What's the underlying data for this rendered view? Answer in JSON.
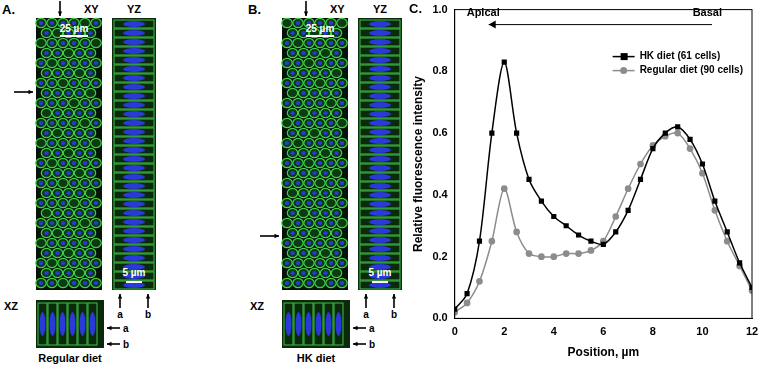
{
  "panels": [
    {
      "panel_label": "A.",
      "caption": "Regular diet",
      "xy_title": "XY",
      "yz_title": "YZ",
      "xz_title": "XZ",
      "xy_scale_bar": "25 µm",
      "yz_scale_bar": "5 µm",
      "yz_marks": [
        "a",
        "b"
      ],
      "xz_marks": [
        "a",
        "b"
      ]
    },
    {
      "panel_label": "B.",
      "caption": "HK diet",
      "xy_title": "XY",
      "yz_title": "YZ",
      "xz_title": "XZ",
      "xy_scale_bar": "25 µm",
      "yz_scale_bar": "5 µm",
      "yz_marks": [
        "a",
        "b"
      ],
      "xz_marks": [
        "a",
        "b"
      ]
    }
  ],
  "chart_data": {
    "panel_label": "C.",
    "type": "line",
    "annotations": [
      "Apical",
      "Basal"
    ],
    "x_label": "Position, µm",
    "y_label": "Relative fluorescence intensity",
    "xlim": [
      0,
      12
    ],
    "xticks": [
      0,
      2,
      4,
      6,
      8,
      10,
      12
    ],
    "ylim": [
      0,
      1
    ],
    "yticks": [
      {
        "value": 0,
        "label": "0.0"
      },
      {
        "value": 0.2,
        "label": "0.2"
      },
      {
        "value": 0.4,
        "label": "0.4"
      },
      {
        "value": 0.6,
        "label": "0.6"
      },
      {
        "value": 0.8,
        "label": "0.8"
      },
      {
        "value": 1,
        "label": "1.0"
      }
    ],
    "grid": false,
    "legend": "upper right",
    "x": [
      0,
      0.5,
      1,
      1.5,
      2,
      2.5,
      3,
      3.5,
      4,
      4.5,
      5,
      5.5,
      6,
      6.5,
      7,
      7.5,
      8,
      8.5,
      9,
      9.5,
      10,
      10.5,
      11,
      11.5,
      12
    ],
    "series": [
      {
        "name": "HK diet (61 cells)",
        "color": "#000000",
        "marker": "square",
        "line_style": "solid",
        "values": [
          0.03,
          0.08,
          0.25,
          0.6,
          0.83,
          0.6,
          0.45,
          0.38,
          0.33,
          0.3,
          0.27,
          0.25,
          0.24,
          0.28,
          0.35,
          0.45,
          0.55,
          0.6,
          0.62,
          0.58,
          0.5,
          0.38,
          0.28,
          0.18,
          0.1
        ]
      },
      {
        "name": "Regular diet (90 cells)",
        "color": "#8c8c8c",
        "marker": "circle",
        "line_style": "solid",
        "values": [
          0.02,
          0.05,
          0.12,
          0.25,
          0.42,
          0.28,
          0.21,
          0.2,
          0.2,
          0.21,
          0.21,
          0.22,
          0.25,
          0.33,
          0.42,
          0.5,
          0.56,
          0.59,
          0.6,
          0.55,
          0.47,
          0.35,
          0.25,
          0.17,
          0.09
        ]
      }
    ]
  }
}
